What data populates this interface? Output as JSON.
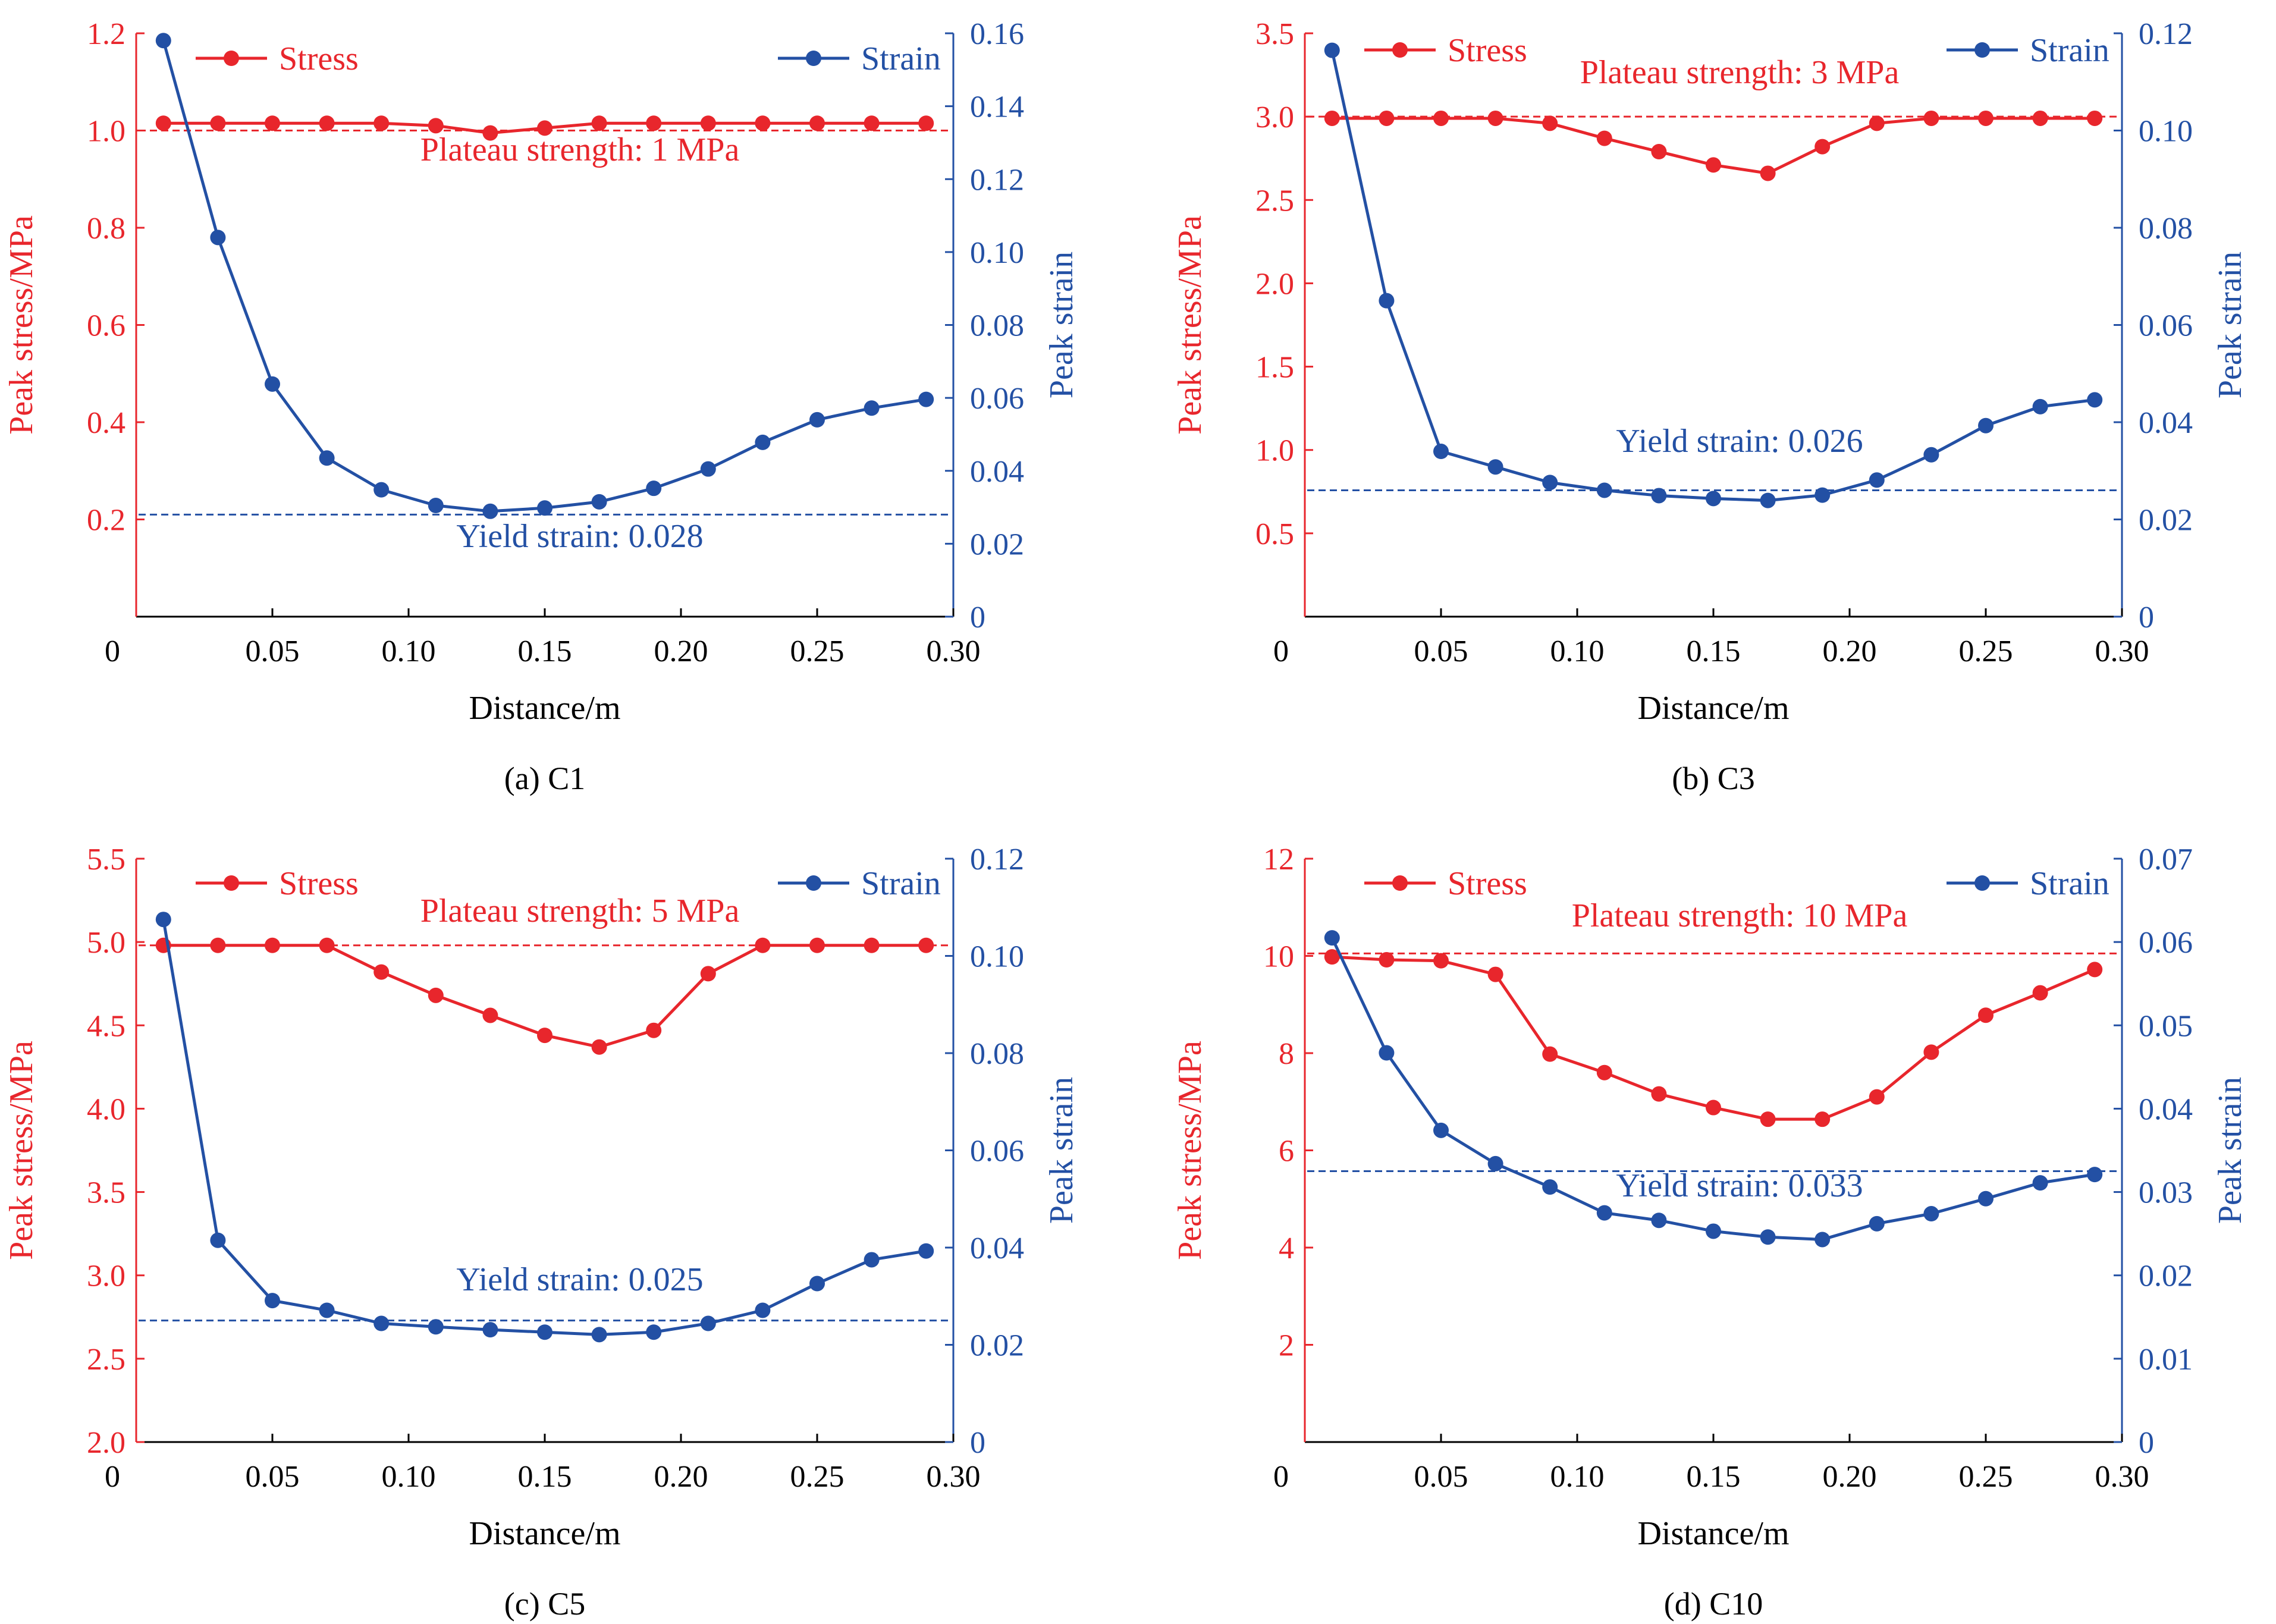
{
  "colors": {
    "stress": "#e8262c",
    "strain": "#2350a4",
    "axis": "#000000"
  },
  "chart_data": [
    {
      "type": "line",
      "caption": "(a) C1",
      "xlabel": "Distance/m",
      "ylabel_left": "Peak stress/MPa",
      "ylabel_right": "Peak strain",
      "xlim": [
        0,
        0.3
      ],
      "ylim_left": [
        0,
        1.2
      ],
      "ylim_right": [
        0,
        0.16
      ],
      "x_ticks": [
        0,
        0.05,
        0.1,
        0.15,
        0.2,
        0.25,
        0.3
      ],
      "x_tick_labels": [
        "0",
        "0.05",
        "0.10",
        "0.15",
        "0.20",
        "0.25",
        "0.30"
      ],
      "y_left_ticks": [
        0.2,
        0.4,
        0.6,
        0.8,
        1.0,
        1.2
      ],
      "y_left_tick_labels": [
        "0.2",
        "0.4",
        "0.6",
        "0.8",
        "1.0",
        "1.2"
      ],
      "y_right_ticks": [
        0,
        0.02,
        0.04,
        0.06,
        0.08,
        0.1,
        0.12,
        0.14,
        0.16
      ],
      "y_right_tick_labels": [
        "0",
        "0.02",
        "0.04",
        "0.06",
        "0.08",
        "0.10",
        "0.12",
        "0.14",
        "0.16"
      ],
      "x": [
        0.01,
        0.03,
        0.05,
        0.07,
        0.09,
        0.11,
        0.13,
        0.15,
        0.17,
        0.19,
        0.21,
        0.23,
        0.25,
        0.27,
        0.29
      ],
      "series": [
        {
          "name": "Stress",
          "axis": "left",
          "values": [
            1.015,
            1.015,
            1.015,
            1.015,
            1.015,
            1.01,
            0.995,
            1.005,
            1.015,
            1.015,
            1.015,
            1.015,
            1.015,
            1.015,
            1.015
          ]
        },
        {
          "name": "Strain",
          "axis": "right",
          "values": [
            0.158,
            0.104,
            0.0638,
            0.0435,
            0.0348,
            0.0305,
            0.0289,
            0.0298,
            0.0315,
            0.0352,
            0.0405,
            0.0478,
            0.054,
            0.0572,
            0.0596
          ]
        }
      ],
      "reference_lines": [
        {
          "axis": "left",
          "value": 1.0,
          "label": "Plateau strength: 1 MPa",
          "color_key": "stress"
        },
        {
          "axis": "right",
          "value": 0.028,
          "label": "Yield strain: 0.028",
          "color_key": "strain"
        }
      ]
    },
    {
      "type": "line",
      "caption": "(b) C3",
      "xlabel": "Distance/m",
      "ylabel_left": "Peak stress/MPa",
      "ylabel_right": "Peak strain",
      "xlim": [
        0,
        0.3
      ],
      "ylim_left": [
        0,
        3.5
      ],
      "ylim_right": [
        0,
        0.12
      ],
      "x_ticks": [
        0,
        0.05,
        0.1,
        0.15,
        0.2,
        0.25,
        0.3
      ],
      "x_tick_labels": [
        "0",
        "0.05",
        "0.10",
        "0.15",
        "0.20",
        "0.25",
        "0.30"
      ],
      "y_left_ticks": [
        0.5,
        1.0,
        1.5,
        2.0,
        2.5,
        3.0,
        3.5
      ],
      "y_left_tick_labels": [
        "0.5",
        "1.0",
        "1.5",
        "2.0",
        "2.5",
        "3.0",
        "3.5"
      ],
      "y_right_ticks": [
        0,
        0.02,
        0.04,
        0.06,
        0.08,
        0.1,
        0.12
      ],
      "y_right_tick_labels": [
        "0",
        "0.02",
        "0.04",
        "0.06",
        "0.08",
        "0.10",
        "0.12"
      ],
      "x": [
        0.01,
        0.03,
        0.05,
        0.07,
        0.09,
        0.11,
        0.13,
        0.15,
        0.17,
        0.19,
        0.21,
        0.23,
        0.25,
        0.27,
        0.29
      ],
      "series": [
        {
          "name": "Stress",
          "axis": "left",
          "values": [
            2.99,
            2.99,
            2.99,
            2.99,
            2.96,
            2.87,
            2.79,
            2.71,
            2.66,
            2.82,
            2.96,
            2.99,
            2.99,
            2.99,
            2.99
          ]
        },
        {
          "name": "Strain",
          "axis": "right",
          "values": [
            0.1165,
            0.065,
            0.034,
            0.0308,
            0.0276,
            0.026,
            0.0249,
            0.0243,
            0.0239,
            0.025,
            0.0281,
            0.0333,
            0.0393,
            0.0432,
            0.0446
          ]
        }
      ],
      "reference_lines": [
        {
          "axis": "left",
          "value": 3.0,
          "label": "Plateau strength: 3 MPa",
          "color_key": "stress"
        },
        {
          "axis": "right",
          "value": 0.026,
          "label": "Yield strain: 0.026",
          "color_key": "strain"
        }
      ]
    },
    {
      "type": "line",
      "caption": "(c) C5",
      "xlabel": "Distance/m",
      "ylabel_left": "Peak stress/MPa",
      "ylabel_right": "Peak strain",
      "xlim": [
        0,
        0.3
      ],
      "ylim_left": [
        2.0,
        5.5
      ],
      "ylim_right": [
        0,
        0.12
      ],
      "x_ticks": [
        0,
        0.05,
        0.1,
        0.15,
        0.2,
        0.25,
        0.3
      ],
      "x_tick_labels": [
        "0",
        "0.05",
        "0.10",
        "0.15",
        "0.20",
        "0.25",
        "0.30"
      ],
      "y_left_ticks": [
        2.0,
        2.5,
        3.0,
        3.5,
        4.0,
        4.5,
        5.0,
        5.5
      ],
      "y_left_tick_labels": [
        "2.0",
        "2.5",
        "3.0",
        "3.5",
        "4.0",
        "4.5",
        "5.0",
        "5.5"
      ],
      "y_right_ticks": [
        0,
        0.02,
        0.04,
        0.06,
        0.08,
        0.1,
        0.12
      ],
      "y_right_tick_labels": [
        "0",
        "0.02",
        "0.04",
        "0.06",
        "0.08",
        "0.10",
        "0.12"
      ],
      "x": [
        0.01,
        0.03,
        0.05,
        0.07,
        0.09,
        0.11,
        0.13,
        0.15,
        0.17,
        0.19,
        0.21,
        0.23,
        0.25,
        0.27,
        0.29
      ],
      "series": [
        {
          "name": "Stress",
          "axis": "left",
          "values": [
            4.98,
            4.98,
            4.98,
            4.98,
            4.82,
            4.68,
            4.56,
            4.44,
            4.37,
            4.47,
            4.81,
            4.98,
            4.98,
            4.98,
            4.98
          ]
        },
        {
          "name": "Strain",
          "axis": "right",
          "values": [
            0.1075,
            0.0415,
            0.0291,
            0.0271,
            0.0244,
            0.0237,
            0.0231,
            0.0226,
            0.0221,
            0.0226,
            0.0244,
            0.0271,
            0.0326,
            0.0375,
            0.0393
          ]
        }
      ],
      "reference_lines": [
        {
          "axis": "left",
          "value": 4.98,
          "label": "Plateau strength: 5 MPa",
          "color_key": "stress"
        },
        {
          "axis": "right",
          "value": 0.025,
          "label": "Yield strain: 0.025",
          "color_key": "strain"
        }
      ]
    },
    {
      "type": "line",
      "caption": "(d) C10",
      "xlabel": "Distance/m",
      "ylabel_left": "Peak stress/MPa",
      "ylabel_right": "Peak strain",
      "xlim": [
        0,
        0.3
      ],
      "ylim_left": [
        0,
        12
      ],
      "ylim_right": [
        0,
        0.07
      ],
      "x_ticks": [
        0,
        0.05,
        0.1,
        0.15,
        0.2,
        0.25,
        0.3
      ],
      "x_tick_labels": [
        "0",
        "0.05",
        "0.10",
        "0.15",
        "0.20",
        "0.25",
        "0.30"
      ],
      "y_left_ticks": [
        2,
        4,
        6,
        8,
        10,
        12
      ],
      "y_left_tick_labels": [
        "2",
        "4",
        "6",
        "8",
        "10",
        "12"
      ],
      "y_right_ticks": [
        0,
        0.01,
        0.02,
        0.03,
        0.04,
        0.05,
        0.06,
        0.07
      ],
      "y_right_tick_labels": [
        "0",
        "0.01",
        "0.02",
        "0.03",
        "0.04",
        "0.05",
        "0.06",
        "0.07"
      ],
      "x": [
        0.01,
        0.03,
        0.05,
        0.07,
        0.09,
        0.11,
        0.13,
        0.15,
        0.17,
        0.19,
        0.21,
        0.23,
        0.25,
        0.27,
        0.29
      ],
      "series": [
        {
          "name": "Stress",
          "axis": "left",
          "values": [
            9.98,
            9.92,
            9.9,
            9.62,
            7.98,
            7.6,
            7.16,
            6.88,
            6.64,
            6.64,
            7.1,
            8.02,
            8.78,
            9.24,
            9.72
          ]
        },
        {
          "name": "Strain",
          "axis": "right",
          "values": [
            0.0605,
            0.0467,
            0.0374,
            0.0334,
            0.0306,
            0.0275,
            0.0266,
            0.0253,
            0.0246,
            0.0243,
            0.0262,
            0.0274,
            0.0292,
            0.0311,
            0.0321
          ]
        }
      ],
      "reference_lines": [
        {
          "axis": "left",
          "value": 10.05,
          "label": "Plateau strength: 10 MPa",
          "color_key": "stress"
        },
        {
          "axis": "right",
          "value": 0.0325,
          "label": "Yield strain: 0.033",
          "color_key": "strain"
        }
      ]
    }
  ]
}
